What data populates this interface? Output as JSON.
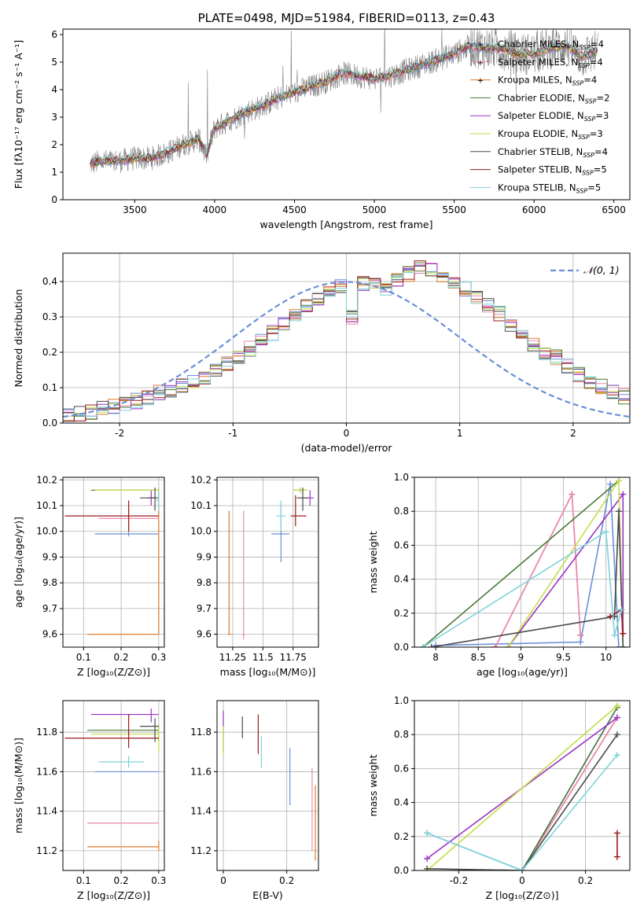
{
  "colors": {
    "blue": "#6a8fd8",
    "orange": "#e07b2a",
    "pink": "#e889b3",
    "green": "#4c7a3c",
    "purple": "#9a32c4",
    "yellow": "#c5dd4a",
    "dark": "#4a4a4a",
    "red": "#9a1c1c",
    "cyan": "#7fd3d8",
    "data": "#808080",
    "grid": "#b0b0b0"
  },
  "chart_data": [
    {
      "id": "spectrum",
      "type": "line",
      "title": "PLATE=0498, MJD=51984, FIBERID=0113, z=0.43",
      "xlabel": "wavelength [Angstrom, rest frame]",
      "ylabel": "Flux [fλ10⁻¹⁷ erg cm⁻² s⁻¹ A⁻¹]",
      "xlim": [
        3050,
        6600
      ],
      "ylim": [
        0,
        6.2
      ],
      "xticks": [
        3500,
        4000,
        4500,
        5000,
        5500,
        6000,
        6500
      ],
      "yticks": [
        0,
        1,
        2,
        3,
        4,
        5,
        6
      ],
      "grid": false,
      "legend_position": "top-right",
      "continuum": {
        "x": [
          3220,
          3300,
          3400,
          3500,
          3600,
          3700,
          3800,
          3900,
          3950,
          4000,
          4100,
          4200,
          4300,
          4400,
          4500,
          4600,
          4700,
          4800,
          4900,
          5000,
          5100,
          5200,
          5300,
          5400,
          5500,
          5600,
          5700,
          5800,
          5900,
          6000,
          6100,
          6200,
          6300,
          6400
        ],
        "y": [
          1.3,
          1.4,
          1.4,
          1.5,
          1.5,
          1.7,
          2.0,
          2.2,
          1.6,
          2.6,
          2.9,
          3.2,
          3.4,
          3.7,
          3.9,
          4.1,
          4.3,
          4.6,
          4.5,
          4.4,
          4.5,
          4.7,
          4.9,
          5.1,
          5.3,
          5.6,
          5.5,
          5.5,
          5.3,
          5.3,
          5.5,
          5.6,
          5.2,
          5.4
        ]
      },
      "legend": [
        {
          "label": "Chabrier MILES, N",
          "sub": "SSP",
          "tail": "=4",
          "color": "blue"
        },
        {
          "label": "Salpeter MILES, N",
          "sub": "SSP",
          "tail": "=4",
          "color": "pink"
        },
        {
          "label": "Kroupa MILES, N",
          "sub": "SSP",
          "tail": "=4",
          "color": "orange"
        },
        {
          "label": "Chabrier ELODIE, N",
          "sub": "SSP",
          "tail": "=2",
          "color": "green"
        },
        {
          "label": "Salpeter ELODIE, N",
          "sub": "SSP",
          "tail": "=3",
          "color": "purple"
        },
        {
          "label": "Kroupa ELODIE, N",
          "sub": "SSP",
          "tail": "=3",
          "color": "yellow"
        },
        {
          "label": "Chabrier STELIB, N",
          "sub": "SSP",
          "tail": "=4",
          "color": "dark"
        },
        {
          "label": "Salpeter STELIB, N",
          "sub": "SSP",
          "tail": "=5",
          "color": "red"
        },
        {
          "label": "Kroupa STELIB, N",
          "sub": "SSP",
          "tail": "=5",
          "color": "cyan"
        }
      ]
    },
    {
      "id": "residuals",
      "type": "line",
      "xlabel": "(data-model)/error",
      "ylabel": "Normed distribution",
      "xlim": [
        -2.5,
        2.5
      ],
      "ylim": [
        0,
        0.48
      ],
      "xticks": [
        -2,
        -1,
        0,
        1,
        2
      ],
      "yticks": [
        0.0,
        0.1,
        0.2,
        0.3,
        0.4
      ],
      "grid": true,
      "legend": "𝒩(0, 1)",
      "legend_position": "top-right",
      "bin_width": 0.1,
      "histogram_template": [
        0.02,
        0.025,
        0.03,
        0.04,
        0.048,
        0.055,
        0.062,
        0.072,
        0.085,
        0.095,
        0.105,
        0.115,
        0.13,
        0.148,
        0.168,
        0.19,
        0.21,
        0.232,
        0.255,
        0.28,
        0.305,
        0.33,
        0.35,
        0.365,
        0.385,
        0.3,
        0.395,
        0.4,
        0.38,
        0.405,
        0.42,
        0.44,
        0.43,
        0.415,
        0.4,
        0.38,
        0.35,
        0.33,
        0.31,
        0.28,
        0.25,
        0.225,
        0.2,
        0.185,
        0.16,
        0.14,
        0.12,
        0.105,
        0.085,
        0.075
      ]
    },
    {
      "id": "age-vs-Z",
      "type": "scatter",
      "xlabel": "Z [log₁₀(Z/Z⊙)]",
      "ylabel": "age  [log₁₀(age/yr)]",
      "xlim": [
        0.045,
        0.315
      ],
      "ylim": [
        9.55,
        10.21
      ],
      "xticks": [
        0.1,
        0.2,
        0.3
      ],
      "yticks": [
        9.6,
        9.7,
        9.8,
        9.9,
        10.0,
        10.1,
        10.2
      ],
      "grid": true
    },
    {
      "id": "age-vs-mass",
      "type": "scatter",
      "xlabel": "mass [log₁₀(M/M⊙)]",
      "xlim": [
        11.12,
        11.96
      ],
      "ylim": [
        9.55,
        10.21
      ],
      "xticks": [
        11.25,
        11.5,
        11.75
      ],
      "yticks": [
        9.6,
        9.7,
        9.8,
        9.9,
        10.0,
        10.1,
        10.2
      ],
      "grid": true
    },
    {
      "id": "weight-vs-age",
      "type": "line",
      "xlabel": "age  [log₁₀(age/yr)]",
      "ylabel": "mass weight",
      "xlim": [
        7.75,
        10.28
      ],
      "ylim": [
        0,
        1
      ],
      "xticks": [
        8.0,
        8.5,
        9.0,
        9.5,
        10.0
      ],
      "yticks": [
        0.0,
        0.2,
        0.4,
        0.6,
        0.8,
        1.0
      ],
      "grid": true,
      "series": [
        {
          "color": "blue",
          "x": [
            8.0,
            9.7,
            10.05,
            10.15
          ],
          "y": [
            0.01,
            0.03,
            0.96,
            0.0
          ]
        },
        {
          "color": "orange",
          "x": [
            8.7,
            9.6,
            9.7
          ],
          "y": [
            0.0,
            0.9,
            0.07
          ]
        },
        {
          "color": "pink",
          "x": [
            8.7,
            9.6,
            9.7
          ],
          "y": [
            0.0,
            0.9,
            0.07
          ]
        },
        {
          "color": "green",
          "x": [
            7.85,
            10.15
          ],
          "y": [
            0.0,
            0.98
          ]
        },
        {
          "color": "purple",
          "x": [
            8.85,
            10.2,
            10.2
          ],
          "y": [
            0.0,
            0.9,
            0.08
          ]
        },
        {
          "color": "yellow",
          "x": [
            8.85,
            10.15,
            10.2
          ],
          "y": [
            0.0,
            0.98,
            0.0
          ]
        },
        {
          "color": "dark",
          "x": [
            7.95,
            10.1,
            10.15,
            10.2
          ],
          "y": [
            0.0,
            0.18,
            0.8,
            0.0
          ]
        },
        {
          "color": "red",
          "x": [
            10.05,
            10.18,
            10.2
          ],
          "y": [
            0.18,
            0.22,
            0.08
          ]
        },
        {
          "color": "cyan",
          "x": [
            7.85,
            10.0,
            10.1,
            10.18
          ],
          "y": [
            0.0,
            0.68,
            0.07,
            0.22
          ]
        }
      ]
    },
    {
      "id": "mass-vs-Z",
      "type": "scatter",
      "xlabel": "Z [log₁₀(Z/Z⊙)]",
      "ylabel": "mass [log₁₀(M/M⊙)]",
      "xlim": [
        0.045,
        0.315
      ],
      "ylim": [
        11.1,
        11.96
      ],
      "xticks": [
        0.1,
        0.2,
        0.3
      ],
      "yticks": [
        11.2,
        11.4,
        11.6,
        11.8
      ],
      "grid": true
    },
    {
      "id": "mass-vs-EBV",
      "type": "scatter",
      "xlabel": "E(B-V)",
      "xlim": [
        -0.02,
        0.3
      ],
      "ylim": [
        11.1,
        11.96
      ],
      "xticks": [
        0.0,
        0.2
      ],
      "yticks": [
        11.2,
        11.4,
        11.6,
        11.8
      ],
      "grid": true
    },
    {
      "id": "weight-vs-Z",
      "type": "line",
      "xlabel": "Z [log₁₀(Z/Z⊙)]",
      "ylabel": "mass weight",
      "xlim": [
        -0.34,
        0.34
      ],
      "ylim": [
        0,
        1
      ],
      "xticks": [
        -0.2,
        0.0,
        0.2
      ],
      "yticks": [
        0.0,
        0.2,
        0.4,
        0.6,
        0.8,
        1.0
      ],
      "grid": true,
      "series": [
        {
          "color": "blue",
          "x": [
            -0.3,
            0.0,
            0.3
          ],
          "y": [
            0.22,
            0.0,
            0.96
          ]
        },
        {
          "color": "orange",
          "x": [
            0.0,
            0.3
          ],
          "y": [
            0.0,
            0.9
          ]
        },
        {
          "color": "pink",
          "x": [
            0.0,
            0.3
          ],
          "y": [
            0.0,
            0.9
          ]
        },
        {
          "color": "green",
          "x": [
            0.0,
            0.3
          ],
          "y": [
            0.0,
            0.96
          ]
        },
        {
          "color": "purple",
          "x": [
            -0.3,
            0.3
          ],
          "y": [
            0.07,
            0.9
          ]
        },
        {
          "color": "yellow",
          "x": [
            -0.3,
            0.3
          ],
          "y": [
            0.0,
            0.97
          ]
        },
        {
          "color": "dark",
          "x": [
            -0.3,
            0.0,
            0.3
          ],
          "y": [
            0.01,
            0.0,
            0.8
          ]
        },
        {
          "color": "red",
          "x": [
            0.3,
            0.3
          ],
          "y": [
            0.08,
            0.22
          ]
        },
        {
          "color": "cyan",
          "x": [
            -0.3,
            0.0,
            0.3
          ],
          "y": [
            0.22,
            0.0,
            0.68
          ]
        }
      ]
    }
  ],
  "errorbars": {
    "age_Z": [
      {
        "c": "blue",
        "x": 0.22,
        "xl": 0.13,
        "xh": 0.3,
        "y": 9.99,
        "yl": 9.98,
        "yh": 10.0
      },
      {
        "c": "orange",
        "x": 0.3,
        "xl": 0.11,
        "xh": 0.3,
        "y": 9.6,
        "yl": 9.6,
        "yh": 10.16
      },
      {
        "c": "pink",
        "x": 0.22,
        "xl": 0.14,
        "xh": 0.3,
        "y": 10.05,
        "yl": 10.0,
        "yh": 10.1
      },
      {
        "c": "green",
        "x": 0.3,
        "xl": 0.12,
        "xh": 0.3,
        "y": 10.16,
        "yl": 10.15,
        "yh": 10.17
      },
      {
        "c": "purple",
        "x": 0.28,
        "xl": 0.27,
        "xh": 0.29,
        "y": 10.13,
        "yl": 10.1,
        "yh": 10.16
      },
      {
        "c": "yellow",
        "x": 0.3,
        "xl": 0.13,
        "xh": 0.3,
        "y": 10.16,
        "yl": 10.13,
        "yh": 10.17
      },
      {
        "c": "dark",
        "x": 0.29,
        "xl": 0.25,
        "xh": 0.3,
        "y": 10.13,
        "yl": 10.08,
        "yh": 10.17
      },
      {
        "c": "red",
        "x": 0.22,
        "xl": 0.05,
        "xh": 0.3,
        "y": 10.06,
        "yl": 10.0,
        "yh": 10.12
      },
      {
        "c": "cyan",
        "x": 0.3,
        "xl": 0.29,
        "xh": 0.3,
        "y": 10.12,
        "yl": 10.08,
        "yh": 10.16
      }
    ],
    "age_mass": [
      {
        "c": "blue",
        "x": 11.65,
        "xl": 11.57,
        "xh": 11.72,
        "y": 9.99,
        "yl": 9.88,
        "yh": 10.11
      },
      {
        "c": "orange",
        "x": 11.22,
        "xl": 11.21,
        "xh": 11.24,
        "y": 9.6,
        "yl": 9.6,
        "yh": 10.08
      },
      {
        "c": "pink",
        "x": 11.34,
        "xl": 11.33,
        "xh": 11.35,
        "y": 9.6,
        "yl": 9.58,
        "yh": 10.08
      },
      {
        "c": "green",
        "x": 11.81,
        "xl": 11.75,
        "xh": 11.85,
        "y": 10.16,
        "yl": 10.15,
        "yh": 10.17
      },
      {
        "c": "purple",
        "x": 11.89,
        "xl": 11.85,
        "xh": 11.92,
        "y": 10.13,
        "yl": 10.1,
        "yh": 10.16
      },
      {
        "c": "yellow",
        "x": 11.81,
        "xl": 11.75,
        "xh": 11.87,
        "y": 10.16,
        "yl": 10.15,
        "yh": 10.17
      },
      {
        "c": "dark",
        "x": 11.83,
        "xl": 11.78,
        "xh": 11.87,
        "y": 10.13,
        "yl": 10.08,
        "yh": 10.17
      },
      {
        "c": "red",
        "x": 11.77,
        "xl": 11.73,
        "xh": 11.86,
        "y": 10.06,
        "yl": 10.02,
        "yh": 10.14
      },
      {
        "c": "cyan",
        "x": 11.65,
        "xl": 11.61,
        "xh": 11.69,
        "y": 10.06,
        "yl": 10.0,
        "yh": 10.12
      }
    ],
    "mass_Z": [
      {
        "c": "blue",
        "x": 0.22,
        "xl": 0.13,
        "xh": 0.3,
        "y": 11.6,
        "yl": 11.6,
        "yh": 11.6
      },
      {
        "c": "orange",
        "x": 0.3,
        "xl": 0.11,
        "xh": 0.3,
        "y": 11.22,
        "yl": 11.2,
        "yh": 11.25
      },
      {
        "c": "pink",
        "x": 0.3,
        "xl": 0.11,
        "xh": 0.3,
        "y": 11.34,
        "yl": 11.34,
        "yh": 11.34
      },
      {
        "c": "green",
        "x": 0.3,
        "xl": 0.11,
        "xh": 0.3,
        "y": 11.81,
        "yl": 11.75,
        "yh": 11.84
      },
      {
        "c": "purple",
        "x": 0.28,
        "xl": 0.12,
        "xh": 0.3,
        "y": 11.89,
        "yl": 11.85,
        "yh": 11.92
      },
      {
        "c": "yellow",
        "x": 0.3,
        "xl": 0.12,
        "xh": 0.3,
        "y": 11.79,
        "yl": 11.7,
        "yh": 11.84
      },
      {
        "c": "dark",
        "x": 0.29,
        "xl": 0.25,
        "xh": 0.3,
        "y": 11.83,
        "yl": 11.75,
        "yh": 11.87
      },
      {
        "c": "red",
        "x": 0.22,
        "xl": 0.05,
        "xh": 0.3,
        "y": 11.77,
        "yl": 11.72,
        "yh": 11.89
      },
      {
        "c": "cyan",
        "x": 0.22,
        "xl": 0.14,
        "xh": 0.26,
        "y": 11.65,
        "yl": 11.62,
        "yh": 11.68
      }
    ],
    "mass_EBV": [
      {
        "c": "blue",
        "x": 0.21,
        "yl": 11.43,
        "yh": 11.72
      },
      {
        "c": "orange",
        "x": 0.29,
        "yl": 11.15,
        "yh": 11.53
      },
      {
        "c": "pink",
        "x": 0.28,
        "yl": 11.2,
        "yh": 11.62
      },
      {
        "c": "green",
        "x": 0.0,
        "yl": 11.7,
        "yh": 11.82
      },
      {
        "c": "purple",
        "x": 0.0,
        "yl": 11.82,
        "yh": 11.91
      },
      {
        "c": "yellow",
        "x": 0.0,
        "yl": 11.68,
        "yh": 11.83
      },
      {
        "c": "dark",
        "x": 0.06,
        "yl": 11.77,
        "yh": 11.88
      },
      {
        "c": "red",
        "x": 0.11,
        "yl": 11.69,
        "yh": 11.89
      },
      {
        "c": "cyan",
        "x": 0.12,
        "yl": 11.62,
        "yh": 11.78
      }
    ]
  }
}
